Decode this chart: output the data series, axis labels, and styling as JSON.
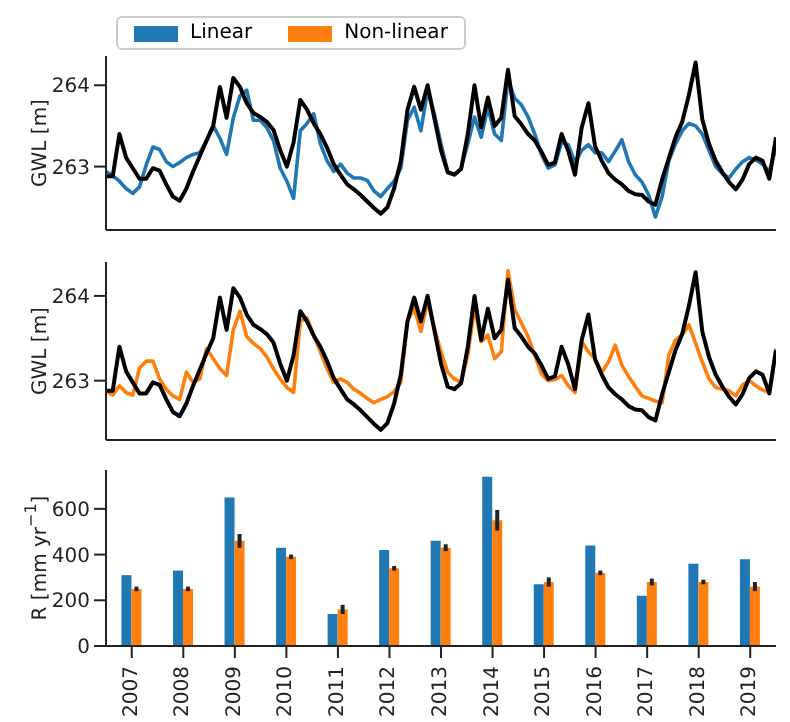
{
  "chart_data": [
    {
      "type": "line",
      "ylabel": "GWL [m]",
      "categories": [
        null,
        null,
        null,
        null,
        null,
        null,
        null,
        null,
        null,
        null,
        null,
        null,
        null,
        null,
        null,
        null,
        null,
        null,
        null,
        null,
        null,
        null,
        null,
        null,
        null,
        null,
        null,
        null,
        null,
        null,
        null,
        null,
        null,
        null,
        null,
        null,
        null,
        null,
        null,
        null,
        null,
        null,
        null,
        null,
        null,
        null,
        null,
        null,
        null,
        null,
        null,
        null,
        null,
        null,
        null,
        null,
        null,
        null,
        null,
        null,
        null,
        null,
        null,
        null,
        null,
        null,
        null,
        null,
        null,
        null,
        null,
        null,
        null,
        null,
        null,
        null,
        null,
        null,
        null,
        null,
        null,
        null,
        null,
        null,
        null,
        null,
        null,
        null,
        null,
        null,
        null,
        null,
        null,
        null,
        null,
        null,
        null,
        null,
        null,
        null,
        null
      ],
      "ylim": [
        262.22,
        264.36
      ],
      "yticks": [
        263,
        264
      ],
      "tick_labels": "y",
      "series": [
        {
          "color": "#1f77b4",
          "values": [
            262.94,
            262.89,
            262.82,
            262.73,
            262.67,
            262.75,
            263.02,
            263.24,
            263.21,
            263.06,
            263.0,
            263.05,
            263.11,
            263.15,
            263.17,
            263.31,
            263.5,
            263.35,
            263.15,
            263.6,
            263.87,
            263.94,
            263.57,
            263.57,
            263.48,
            263.32,
            262.98,
            262.82,
            262.61,
            263.44,
            263.53,
            263.65,
            263.28,
            263.07,
            262.94,
            263.03,
            262.92,
            262.86,
            262.86,
            262.83,
            262.7,
            262.63,
            262.73,
            262.82,
            262.98,
            263.57,
            263.73,
            263.44,
            263.94,
            263.65,
            263.28,
            262.94,
            262.9,
            262.98,
            263.28,
            263.61,
            263.36,
            263.73,
            263.4,
            263.32,
            264.07,
            263.84,
            263.76,
            263.61,
            263.4,
            263.15,
            262.98,
            263.02,
            263.3,
            263.27,
            263.05,
            263.2,
            263.27,
            263.17,
            263.17,
            263.06,
            263.19,
            263.33,
            263.06,
            262.9,
            262.81,
            262.65,
            262.38,
            262.63,
            263.07,
            263.28,
            263.44,
            263.53,
            263.5,
            263.4,
            263.2,
            263.0,
            262.91,
            262.86,
            262.97,
            263.06,
            263.11,
            263.08,
            263.03,
            262.94,
            263.23
          ]
        },
        {
          "color": "#000000",
          "values": [
            262.88,
            262.88,
            263.4,
            263.11,
            262.98,
            262.85,
            262.85,
            262.98,
            262.95,
            262.78,
            262.63,
            262.58,
            262.73,
            262.94,
            263.13,
            263.32,
            263.5,
            263.98,
            263.6,
            264.09,
            263.98,
            263.78,
            263.66,
            263.61,
            263.55,
            263.45,
            263.2,
            263.0,
            263.3,
            263.82,
            263.7,
            263.53,
            263.4,
            263.23,
            263.03,
            262.9,
            262.78,
            262.72,
            262.65,
            262.57,
            262.49,
            262.42,
            262.5,
            262.73,
            263.07,
            263.7,
            263.98,
            263.7,
            264.0,
            263.6,
            263.2,
            262.93,
            262.9,
            262.97,
            263.4,
            264.0,
            263.48,
            263.85,
            263.5,
            263.6,
            264.19,
            263.62,
            263.52,
            263.4,
            263.32,
            263.18,
            263.02,
            263.05,
            263.4,
            263.19,
            262.9,
            263.48,
            263.78,
            263.25,
            263.07,
            262.92,
            262.84,
            262.78,
            262.7,
            262.66,
            262.65,
            262.57,
            262.53,
            262.84,
            263.1,
            263.36,
            263.55,
            263.88,
            264.28,
            263.58,
            263.28,
            263.07,
            262.93,
            262.81,
            262.72,
            262.84,
            263.03,
            263.11,
            263.07,
            262.85,
            263.36
          ]
        }
      ]
    },
    {
      "type": "line",
      "ylabel": "GWL [m]",
      "categories": [
        null,
        null,
        null,
        null,
        null,
        null,
        null,
        null,
        null,
        null,
        null,
        null,
        null,
        null,
        null,
        null,
        null,
        null,
        null,
        null,
        null,
        null,
        null,
        null,
        null,
        null,
        null,
        null,
        null,
        null,
        null,
        null,
        null,
        null,
        null,
        null,
        null,
        null,
        null,
        null,
        null,
        null,
        null,
        null,
        null,
        null,
        null,
        null,
        null,
        null,
        null,
        null,
        null,
        null,
        null,
        null,
        null,
        null,
        null,
        null,
        null,
        null,
        null,
        null,
        null,
        null,
        null,
        null,
        null,
        null,
        null,
        null,
        null,
        null,
        null,
        null,
        null,
        null,
        null,
        null,
        null,
        null,
        null,
        null,
        null,
        null,
        null,
        null,
        null,
        null,
        null,
        null,
        null,
        null,
        null,
        null,
        null,
        null,
        null,
        null,
        null
      ],
      "ylim": [
        262.3,
        264.4
      ],
      "yticks": [
        263,
        264
      ],
      "tick_labels": "y",
      "series": [
        {
          "color": "#ff7f0e",
          "values": [
            262.88,
            262.83,
            262.94,
            262.86,
            262.83,
            263.15,
            263.23,
            263.23,
            263.02,
            262.9,
            262.82,
            262.78,
            263.1,
            262.98,
            263.02,
            263.38,
            263.26,
            263.14,
            263.06,
            263.6,
            263.82,
            263.52,
            263.44,
            263.38,
            263.28,
            263.14,
            263.02,
            262.92,
            262.86,
            263.7,
            263.74,
            263.54,
            263.34,
            263.14,
            262.98,
            263.02,
            262.98,
            262.9,
            262.85,
            262.79,
            262.74,
            262.78,
            262.81,
            262.87,
            262.98,
            263.7,
            263.86,
            263.58,
            263.94,
            263.62,
            263.34,
            263.1,
            263.02,
            262.98,
            263.3,
            263.86,
            263.46,
            263.54,
            263.26,
            263.34,
            264.3,
            263.84,
            263.68,
            263.52,
            263.3,
            263.08,
            263.0,
            263.01,
            263.06,
            262.94,
            262.86,
            263.46,
            263.34,
            263.26,
            263.1,
            263.22,
            263.42,
            263.18,
            263.05,
            262.93,
            262.82,
            262.79,
            262.76,
            262.74,
            263.3,
            263.48,
            263.54,
            263.66,
            263.44,
            263.22,
            263.02,
            262.92,
            262.9,
            262.88,
            262.82,
            262.95,
            263.0,
            262.94,
            262.89,
            262.86,
            263.38
          ]
        },
        {
          "color": "#000000",
          "values": [
            262.88,
            262.88,
            263.4,
            263.11,
            262.98,
            262.85,
            262.85,
            262.98,
            262.95,
            262.78,
            262.63,
            262.58,
            262.73,
            262.94,
            263.13,
            263.32,
            263.5,
            263.98,
            263.6,
            264.09,
            263.98,
            263.78,
            263.66,
            263.61,
            263.55,
            263.45,
            263.2,
            263.0,
            263.3,
            263.82,
            263.7,
            263.53,
            263.4,
            263.23,
            263.03,
            262.9,
            262.78,
            262.72,
            262.65,
            262.57,
            262.49,
            262.42,
            262.5,
            262.73,
            263.07,
            263.7,
            263.98,
            263.7,
            264.0,
            263.6,
            263.2,
            262.93,
            262.9,
            262.97,
            263.4,
            264.0,
            263.48,
            263.85,
            263.5,
            263.6,
            264.19,
            263.62,
            263.52,
            263.4,
            263.32,
            263.18,
            263.02,
            263.05,
            263.4,
            263.19,
            262.9,
            263.48,
            263.78,
            263.25,
            263.07,
            262.92,
            262.84,
            262.78,
            262.7,
            262.66,
            262.65,
            262.57,
            262.53,
            262.84,
            263.1,
            263.36,
            263.55,
            263.88,
            264.28,
            263.58,
            263.28,
            263.07,
            262.93,
            262.81,
            262.72,
            262.84,
            263.03,
            263.11,
            263.07,
            262.85,
            263.36
          ]
        }
      ]
    },
    {
      "type": "bar",
      "ylabel": "R [mm yr$^{−1}$]",
      "categories": [
        "2007",
        "2008",
        "2009",
        "2010",
        "2011",
        "2012",
        "2013",
        "2014",
        "2015",
        "2016",
        "2017",
        "2018",
        "2019"
      ],
      "ylim": [
        0,
        770
      ],
      "yticks": [
        0,
        200,
        400,
        600
      ],
      "legend": "top left",
      "series": [
        {
          "name": "Linear",
          "color": "#1f77b4",
          "values": [
            310,
            330,
            650,
            430,
            140,
            420,
            460,
            740,
            270,
            440,
            220,
            360,
            380
          ]
        },
        {
          "name": "Non-linear",
          "color": "#ff7f0e",
          "values": [
            250,
            250,
            460,
            390,
            160,
            340,
            430,
            550,
            280,
            320,
            280,
            280,
            260
          ],
          "errors": [
            10,
            10,
            30,
            10,
            20,
            10,
            15,
            45,
            20,
            10,
            15,
            10,
            20
          ]
        }
      ]
    }
  ]
}
